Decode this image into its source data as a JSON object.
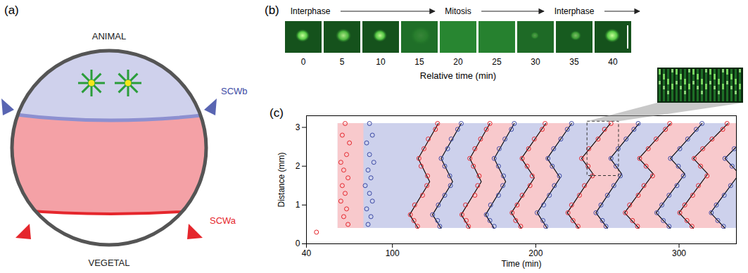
{
  "panel_a": {
    "label": "(a)",
    "top_label": "ANIMAL",
    "bottom_label": "VEGETAL"
  },
  "panel_b": {
    "label": "(b)",
    "phases": [
      "Interphase",
      "Mitosis",
      "Interphase"
    ],
    "times": [
      0,
      5,
      10,
      15,
      20,
      25,
      30,
      35,
      40
    ],
    "xlabel": "Relative time (min)"
  },
  "chart_data": {
    "label": "(c)",
    "type": "scatter",
    "xlabel": "Time (min)",
    "ylabel": "Distance (mm)",
    "xlim": [
      40,
      340
    ],
    "xticks": [
      40,
      100,
      200,
      300
    ],
    "ylim": [
      0,
      3.3
    ],
    "yticks": [
      0,
      1,
      2,
      3
    ],
    "grid": false,
    "region": {
      "x": [
        62,
        340
      ],
      "y": [
        0.4,
        3.1
      ],
      "color": "#cdd1ec"
    },
    "waves": [
      {
        "y": [
          0.4,
          3.1
        ],
        "x1": [
          62,
          62
        ],
        "x2": [
          80,
          80
        ],
        "color": "#f8c9cc",
        "line_style": "none"
      },
      {
        "y": [
          0.4,
          0.75,
          1.6,
          2.2,
          3.1
        ],
        "x1": [
          118,
          112,
          126,
          118,
          132
        ],
        "x2": [
          134,
          128,
          142,
          134,
          148
        ],
        "color": "#f8c9cc",
        "line_style": "solid"
      },
      {
        "y": [
          0.4,
          0.75,
          1.6,
          2.2,
          3.1
        ],
        "x1": [
          154,
          148,
          162,
          154,
          168
        ],
        "x2": [
          171,
          165,
          179,
          171,
          185
        ],
        "color": "#f8c9cc",
        "line_style": "solid"
      },
      {
        "y": [
          0.4,
          0.8,
          1.7,
          2.2,
          3.1
        ],
        "x1": [
          190,
          183,
          199,
          190,
          207
        ],
        "x2": [
          208,
          201,
          217,
          208,
          225
        ],
        "color": "#f8c9cc",
        "line_style": "solid"
      },
      {
        "y": [
          0.4,
          0.8,
          1.8,
          2.2,
          3.1
        ],
        "x1": [
          230,
          222,
          240,
          232,
          252
        ],
        "x2": [
          250,
          242,
          260,
          252,
          272
        ],
        "color": "#f8c9cc",
        "line_style": "solid"
      },
      {
        "y": [
          0.4,
          0.8,
          1.8,
          2.2,
          3.1
        ],
        "x1": [
          272,
          262,
          282,
          272,
          294
        ],
        "x2": [
          294,
          284,
          304,
          294,
          316
        ],
        "color": "#f8c9cc",
        "line_style": "solid"
      },
      {
        "y": [
          0.4,
          0.8,
          1.8,
          2.2,
          3.1
        ],
        "x1": [
          310,
          300,
          320,
          310,
          334
        ],
        "x2": [
          332,
          322,
          342,
          332,
          356
        ],
        "color": "#f8c9cc",
        "line_style": "solid"
      }
    ],
    "zoom": {
      "x": [
        236,
        258
      ],
      "y": [
        1.75,
        3.15
      ],
      "line_style": "dashed"
    },
    "series": [
      {
        "name": "SCWa",
        "color": "#e5262c",
        "marker": "open_circle",
        "x": [
          47,
          69,
          66,
          68,
          64,
          67,
          65,
          69,
          66,
          64,
          68,
          70,
          65,
          67,
          117.5,
          115,
          112.5,
          115.5,
          121,
          124,
          124.5,
          120,
          118.5,
          122,
          125,
          130,
          131.5,
          153,
          151.5,
          148.5,
          151,
          157.5,
          159.5,
          160.5,
          156.5,
          154,
          157.5,
          161.5,
          165.5,
          168,
          189.5,
          186,
          183.5,
          187,
          190.5,
          196,
          197.5,
          194,
          190.5,
          195,
          199,
          204.5,
          206.5,
          229.5,
          226,
          222.5,
          225,
          230.5,
          234,
          239.5,
          236.5,
          232,
          237,
          243.5,
          248,
          252.5,
          271,
          267.5,
          262.5,
          265.5,
          271.5,
          275.5,
          281.5,
          277,
          272.5,
          278.5,
          284,
          290.5,
          293.5,
          309,
          305.5,
          300.5,
          304,
          309.5,
          313.5,
          319.5,
          315,
          310.5,
          316.5,
          323,
          330.5,
          333.5
        ],
        "values": [
          0.3,
          0.5,
          0.7,
          0.9,
          1.1,
          1.3,
          1.5,
          1.7,
          1.9,
          2.1,
          2.3,
          2.6,
          2.8,
          3.1,
          0.45,
          0.6,
          0.75,
          1.0,
          1.25,
          1.5,
          1.75,
          2.0,
          2.2,
          2.45,
          2.7,
          2.95,
          3.1,
          0.45,
          0.6,
          0.75,
          1.0,
          1.25,
          1.5,
          1.75,
          2.0,
          2.2,
          2.45,
          2.7,
          2.95,
          3.1,
          0.45,
          0.6,
          0.8,
          1.0,
          1.25,
          1.5,
          1.75,
          2.0,
          2.2,
          2.45,
          2.7,
          2.95,
          3.1,
          0.45,
          0.6,
          0.8,
          1.0,
          1.25,
          1.5,
          1.75,
          2.0,
          2.2,
          2.45,
          2.7,
          2.95,
          3.1,
          0.45,
          0.6,
          0.8,
          1.0,
          1.25,
          1.5,
          1.75,
          2.0,
          2.2,
          2.45,
          2.7,
          2.95,
          3.1,
          0.45,
          0.6,
          0.8,
          1.0,
          1.25,
          1.5,
          1.75,
          2.0,
          2.2,
          2.45,
          2.7,
          2.95,
          3.1
        ]
      },
      {
        "name": "SCWb",
        "color": "#3c4aa5",
        "marker": "open_circle",
        "x": [
          83,
          85,
          82,
          86,
          84,
          81,
          85,
          83,
          87,
          84,
          82,
          86,
          84,
          133,
          131.5,
          128,
          132,
          136.5,
          140.5,
          140,
          136.5,
          134,
          138.5,
          141,
          145.5,
          148,
          171,
          168,
          165.5,
          168.5,
          174,
          177,
          177.5,
          174,
          171,
          174.5,
          178.5,
          183,
          185,
          207,
          205,
          201,
          205.5,
          209.5,
          213,
          216.5,
          211.5,
          208.5,
          212.5,
          217.5,
          222,
          225,
          249,
          246.5,
          242,
          245.5,
          250,
          254.5,
          259,
          256,
          252.5,
          257.5,
          263,
          268.5,
          271.5,
          293,
          289,
          284.5,
          288,
          293,
          298.5,
          303,
          299.5,
          294,
          300.5,
          306,
          312,
          316,
          331,
          327,
          322.5,
          326,
          331.5,
          336,
          337,
          332,
          338.5
        ],
        "values": [
          0.5,
          0.7,
          0.9,
          1.1,
          1.3,
          1.5,
          1.7,
          1.9,
          2.1,
          2.3,
          2.6,
          2.8,
          3.1,
          0.45,
          0.6,
          0.75,
          1.0,
          1.25,
          1.5,
          1.75,
          2.0,
          2.2,
          2.45,
          2.7,
          2.95,
          3.1,
          0.45,
          0.6,
          0.75,
          1.0,
          1.25,
          1.5,
          1.75,
          2.0,
          2.2,
          2.45,
          2.7,
          2.95,
          3.1,
          0.45,
          0.6,
          0.8,
          1.0,
          1.25,
          1.5,
          1.75,
          2.0,
          2.2,
          2.45,
          2.7,
          2.95,
          3.1,
          0.45,
          0.6,
          0.8,
          1.0,
          1.25,
          1.5,
          1.75,
          2.0,
          2.2,
          2.45,
          2.7,
          2.95,
          3.1,
          0.45,
          0.6,
          0.8,
          1.0,
          1.25,
          1.5,
          1.75,
          2.0,
          2.2,
          2.45,
          2.7,
          2.95,
          3.1,
          0.45,
          0.6,
          0.8,
          1.0,
          1.25,
          1.5,
          2.0,
          2.2,
          2.45
        ]
      }
    ]
  }
}
